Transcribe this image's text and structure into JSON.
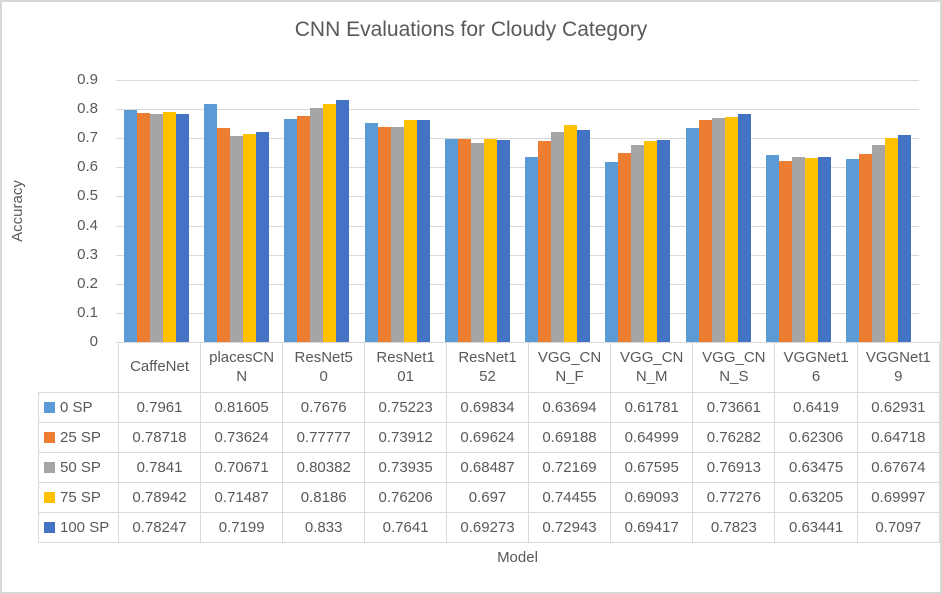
{
  "chart_data": {
    "type": "bar",
    "title": "CNN Evaluations for Cloudy Category",
    "xlabel": "Model",
    "ylabel": "Accuracy",
    "ylim": [
      0,
      0.9
    ],
    "ytick_labels": [
      "0.9",
      "0.8",
      "0.7",
      "0.6",
      "0.5",
      "0.4",
      "0.3",
      "0.2",
      "0.1",
      "0"
    ],
    "grid": true,
    "legend_position": "data-table-left-column",
    "categories": [
      "CaffeNet",
      "placesCNN",
      "ResNet50",
      "ResNet101",
      "ResNet152",
      "VGG_CNN_F",
      "VGG_CNN_M",
      "VGG_CNN_S",
      "VGGNet16",
      "VGGNet19"
    ],
    "category_label_lines": [
      [
        "CaffeNet"
      ],
      [
        "placesCN",
        "N"
      ],
      [
        "ResNet5",
        "0"
      ],
      [
        "ResNet1",
        "01"
      ],
      [
        "ResNet1",
        "52"
      ],
      [
        "VGG_CN",
        "N_F"
      ],
      [
        "VGG_CN",
        "N_M"
      ],
      [
        "VGG_CN",
        "N_S"
      ],
      [
        "VGGNet1",
        "6"
      ],
      [
        "VGGNet1",
        "9"
      ]
    ],
    "series": [
      {
        "name": "0 SP",
        "color": "#5B9BD5",
        "values": [
          0.7961,
          0.81605,
          0.7676,
          0.75223,
          0.69834,
          0.63694,
          0.61781,
          0.73661,
          0.6419,
          0.62931
        ]
      },
      {
        "name": "25 SP",
        "color": "#ED7D31",
        "values": [
          0.78718,
          0.73624,
          0.77777,
          0.73912,
          0.69624,
          0.69188,
          0.64999,
          0.76282,
          0.62306,
          0.64718
        ]
      },
      {
        "name": "50 SP",
        "color": "#A5A5A5",
        "values": [
          0.7841,
          0.70671,
          0.80382,
          0.73935,
          0.68487,
          0.72169,
          0.67595,
          0.76913,
          0.63475,
          0.67674
        ]
      },
      {
        "name": "75 SP",
        "color": "#FFC000",
        "values": [
          0.78942,
          0.71487,
          0.8186,
          0.76206,
          0.697,
          0.74455,
          0.69093,
          0.77276,
          0.63205,
          0.69997
        ]
      },
      {
        "name": "100 SP",
        "color": "#4472C4",
        "values": [
          0.78247,
          0.7199,
          0.833,
          0.7641,
          0.69273,
          0.72943,
          0.69417,
          0.7823,
          0.63441,
          0.7097
        ]
      }
    ],
    "colors": {
      "gridline": "#D9D9D9",
      "table_border": "#D9D9D9",
      "text": "#595959",
      "background": "#FFFFFF"
    }
  }
}
